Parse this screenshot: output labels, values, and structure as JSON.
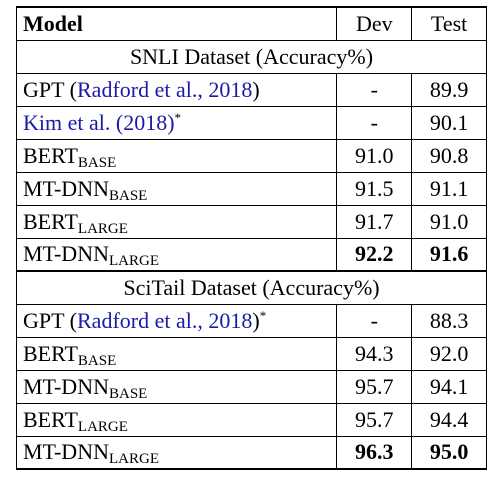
{
  "header": {
    "model": "Model",
    "dev": "Dev",
    "test": "Test"
  },
  "snli": {
    "title": "SNLI Dataset (Accuracy%)",
    "rows": [
      {
        "prefix": "GPT ",
        "cite_open": "(",
        "cite": "Radford et al., 2018",
        "cite_close": ")",
        "dev": "-",
        "test": "89.9"
      },
      {
        "cite": "Kim et al. (2018)",
        "star": "*",
        "dev": "-",
        "test": "90.1"
      },
      {
        "name": "BERT",
        "sub": "BASE",
        "dev": "91.0",
        "test": "90.8"
      },
      {
        "name": "MT-DNN",
        "sub": "BASE",
        "dev": "91.5",
        "test": "91.1"
      },
      {
        "name": "BERT",
        "sub": "LARGE",
        "dev": "91.7",
        "test": "91.0"
      },
      {
        "name": "MT-DNN",
        "sub": "LARGE",
        "dev": "92.2",
        "test": "91.6"
      }
    ]
  },
  "scitail": {
    "title": "SciTail Dataset (Accuracy%)",
    "rows": [
      {
        "prefix": "GPT ",
        "cite_open": "(",
        "cite": "Radford et al., 2018",
        "cite_close": ")",
        "star": "*",
        "dev": "-",
        "test": "88.3"
      },
      {
        "name": "BERT",
        "sub": "BASE",
        "dev": "94.3",
        "test": "92.0"
      },
      {
        "name": "MT-DNN",
        "sub": "BASE",
        "dev": "95.7",
        "test": "94.1"
      },
      {
        "name": "BERT",
        "sub": "LARGE",
        "dev": "95.7",
        "test": "94.4"
      },
      {
        "name": "MT-DNN",
        "sub": "LARGE",
        "dev": "96.3",
        "test": "95.0"
      }
    ]
  }
}
